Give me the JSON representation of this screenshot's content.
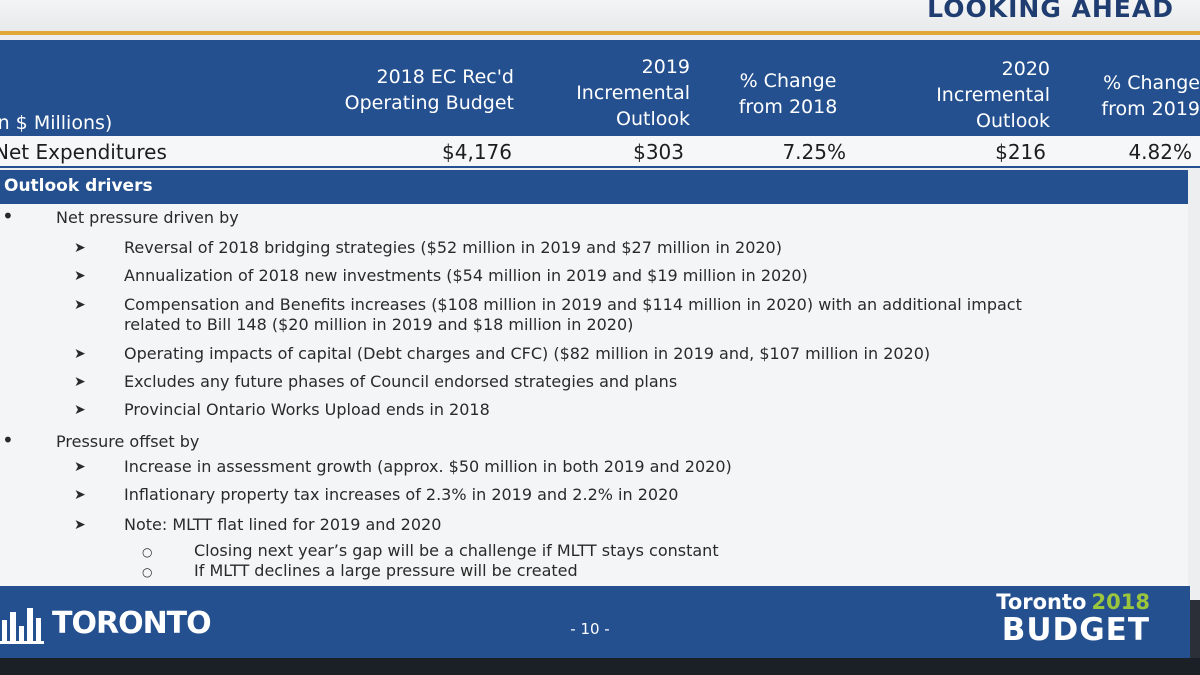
{
  "header": {
    "section_title": "LOOKING AHEAD"
  },
  "table": {
    "units_label": "In $ Millions)",
    "columns": [
      {
        "line1": "2018 EC Rec'd",
        "line2": "Operating Budget"
      },
      {
        "line1": "2019",
        "line2": "Incremental",
        "line3": "Outlook"
      },
      {
        "line1": "% Change",
        "line2": "from 2018"
      },
      {
        "line1": "2020",
        "line2": "Incremental",
        "line3": "Outlook"
      },
      {
        "line1": "% Change",
        "line2": "from 2019"
      }
    ],
    "row": {
      "label": "Net Expenditures",
      "values": [
        "$4,176",
        "$303",
        "7.25%",
        "$216",
        "4.82%"
      ]
    }
  },
  "drivers": {
    "title": "Outlook drivers",
    "groups": [
      {
        "label": "Net pressure driven by",
        "items": [
          "Reversal of 2018 bridging strategies ($52 million in 2019 and $27 million in 2020)",
          "Annualization of 2018 new investments ($54 million in 2019 and $19 million in 2020)",
          "Compensation and Benefits increases ($108 million in 2019 and $114 million in 2020) with an additional impact",
          "related to Bill 148 ($20 million in 2019 and $18 million in 2020)",
          "Operating impacts of capital (Debt charges and CFC) ($82 million in 2019 and, $107 million in 2020)",
          "Excludes any future phases of Council endorsed strategies and plans",
          "Provincial Ontario Works Upload ends in 2018"
        ]
      },
      {
        "label": "Pressure offset by",
        "items": [
          "Increase in assessment growth (approx. $50 million in both 2019 and 2020)",
          "Inflationary property tax increases of 2.3% in 2019 and 2.2% in 2020",
          "Note: MLTT flat lined for 2019 and 2020"
        ],
        "subitems": [
          "Closing next year’s gap will be a challenge if MLTT stays constant",
          "If MLTT declines a large pressure will be created"
        ]
      }
    ]
  },
  "footer": {
    "logo_text": "TORONTO",
    "page_number": "- 10 -",
    "brand_city": "Toronto",
    "brand_year": "2018",
    "brand_word": "BUDGET"
  },
  "colors": {
    "brand_blue": "#24508f",
    "accent_gold": "#e0a93a",
    "brand_green": "#9bc53d"
  }
}
